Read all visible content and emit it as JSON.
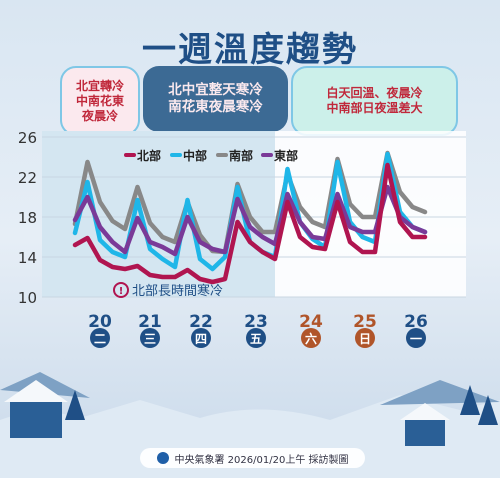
{
  "title": "一週溫度趨勢",
  "boxes": [
    {
      "lines": [
        "北宜轉冷",
        "中南花東",
        "夜晨冷"
      ]
    },
    {
      "lines": [
        "北中宜整天寒冷",
        "南花東夜晨寒冷"
      ]
    },
    {
      "lines": [
        "白天回溫、夜晨冷",
        "中南部日夜溫差大"
      ]
    }
  ],
  "annotation": "北部長時間寒冷",
  "footer": "中央氣象署 2026/01/20上午 採訪製圖",
  "colors": {
    "north": "#b01550",
    "central": "#1fb6e8",
    "south": "#888888",
    "east": "#7a3a98",
    "weekday_circle": "#1f4f86",
    "weekend_circle": "#b0552a"
  },
  "chart_data": {
    "type": "line",
    "ylim": [
      10,
      26
    ],
    "yticks": [
      10,
      14,
      18,
      22,
      26
    ],
    "days": [
      {
        "date": "20",
        "weekday": "二"
      },
      {
        "date": "21",
        "weekday": "三"
      },
      {
        "date": "22",
        "weekday": "四"
      },
      {
        "date": "23",
        "weekday": "五"
      },
      {
        "date": "24",
        "weekday": "六"
      },
      {
        "date": "25",
        "weekday": "日"
      },
      {
        "date": "26",
        "weekday": "一"
      }
    ],
    "x": [
      0.0,
      0.25,
      0.5,
      0.75,
      1.0,
      1.25,
      1.5,
      1.75,
      2.0,
      2.25,
      2.5,
      2.75,
      3.0,
      3.25,
      3.5,
      3.75,
      4.0,
      4.25,
      4.5,
      4.75,
      5.0,
      5.25,
      5.5,
      5.75,
      6.0,
      6.25,
      6.5,
      6.75,
      7.0
    ],
    "shaded_range": [
      0,
      4
    ],
    "series": [
      {
        "name": "北部",
        "values": [
          15.2,
          15.9,
          13.7,
          13.0,
          12.8,
          13.1,
          12.2,
          12.0,
          12.0,
          12.7,
          11.8,
          11.5,
          11.8,
          17.5,
          15.5,
          14.5,
          13.8,
          19.5,
          16.0,
          15.0,
          14.8,
          19.5,
          15.5,
          14.5,
          14.5,
          23.2,
          17.5,
          16.0,
          16.0
        ]
      },
      {
        "name": "中部",
        "values": [
          16.4,
          21.5,
          15.7,
          14.5,
          14.0,
          19.7,
          14.8,
          13.8,
          13.0,
          19.7,
          13.8,
          12.8,
          14.0,
          21.0,
          15.5,
          14.5,
          14.0,
          22.8,
          17.5,
          15.8,
          15.0,
          23.5,
          17.5,
          16.0,
          15.5,
          24.3,
          18.5,
          17.0,
          16.5
        ]
      },
      {
        "name": "南部",
        "values": [
          17.3,
          23.5,
          19.5,
          17.6,
          16.8,
          21.0,
          17.4,
          16.0,
          15.5,
          19.5,
          16.2,
          14.6,
          14.5,
          21.3,
          18.0,
          16.5,
          16.5,
          22.3,
          19.0,
          17.5,
          17.0,
          23.8,
          19.3,
          18.0,
          18.0,
          24.4,
          20.5,
          19.0,
          18.5
        ]
      },
      {
        "name": "東部",
        "values": [
          17.7,
          20.0,
          17.0,
          15.5,
          14.5,
          17.9,
          15.5,
          15.0,
          14.3,
          18.0,
          15.5,
          14.8,
          14.5,
          19.8,
          17.0,
          16.0,
          15.3,
          20.3,
          17.5,
          16.0,
          15.8,
          20.3,
          17.0,
          16.5,
          16.5,
          21.0,
          18.0,
          17.0,
          16.5
        ]
      }
    ]
  }
}
